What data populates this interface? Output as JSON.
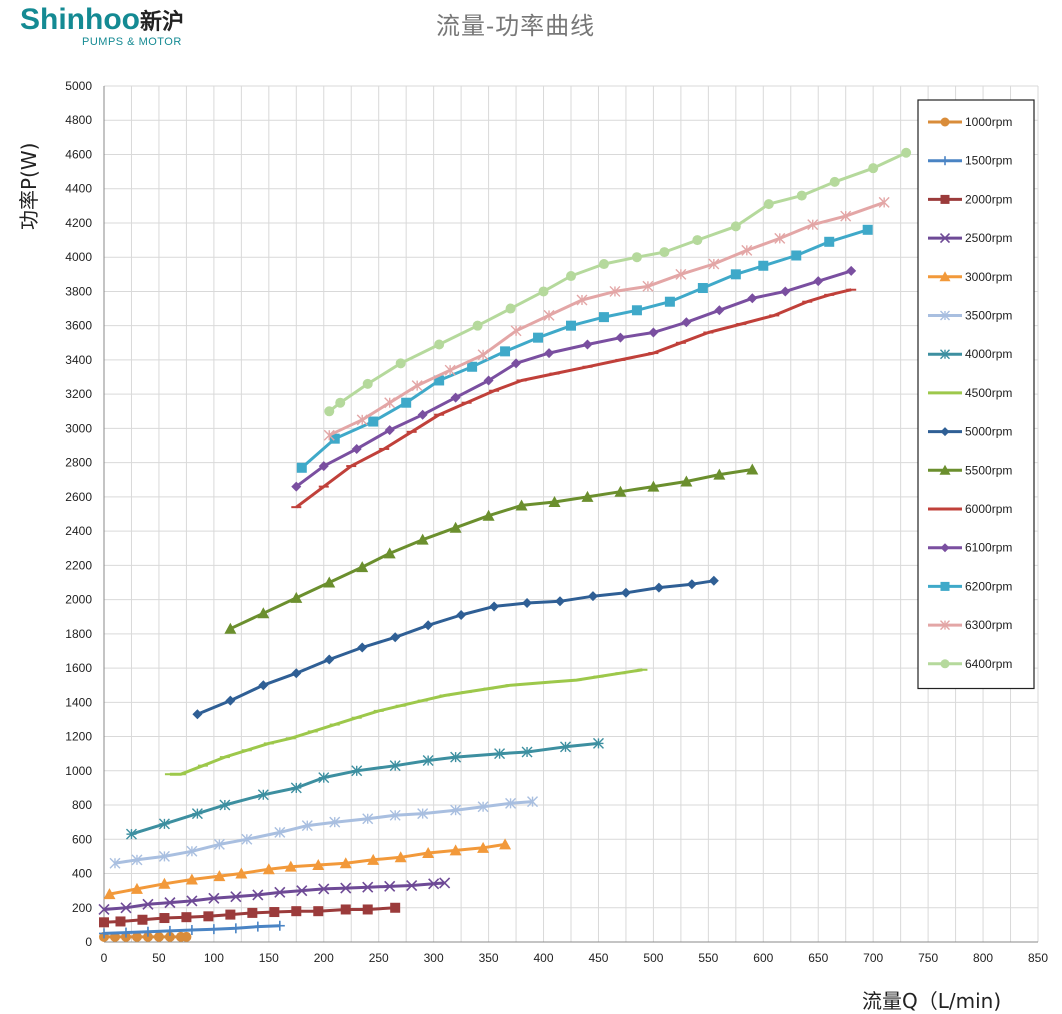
{
  "brand": {
    "name": "Shinhoo",
    "name_cn": "新沪",
    "tagline": "PUMPS & MOTOR"
  },
  "chart_data": {
    "type": "line",
    "title": "流量-功率曲线",
    "xlabel": "流量Q（L/min)",
    "ylabel": "功率P(W)",
    "xlim": [
      0,
      850
    ],
    "ylim": [
      0,
      5000
    ],
    "x_ticks": [
      0,
      50,
      100,
      150,
      200,
      250,
      300,
      350,
      400,
      450,
      500,
      550,
      600,
      650,
      700,
      750,
      800,
      850
    ],
    "y_ticks": [
      0,
      200,
      400,
      600,
      800,
      1000,
      1200,
      1400,
      1600,
      1800,
      2000,
      2200,
      2400,
      2600,
      2800,
      3000,
      3200,
      3400,
      3600,
      3800,
      4000,
      4200,
      4400,
      4600,
      4800,
      5000
    ],
    "grid": true,
    "legend_position": "top-right",
    "series": [
      {
        "name": "1000rpm",
        "color": "#d98c3a",
        "marker": "circle",
        "x": [
          0,
          10,
          20,
          30,
          40,
          50,
          60,
          70,
          75
        ],
        "y": [
          30,
          30,
          30,
          30,
          30,
          30,
          30,
          30,
          30
        ]
      },
      {
        "name": "1500rpm",
        "color": "#4a84c4",
        "marker": "plus",
        "x": [
          0,
          20,
          40,
          60,
          80,
          100,
          120,
          140,
          160
        ],
        "y": [
          50,
          55,
          60,
          65,
          70,
          75,
          80,
          90,
          95
        ]
      },
      {
        "name": "2000rpm",
        "color": "#9b3b3b",
        "marker": "square",
        "x": [
          0,
          15,
          35,
          55,
          75,
          95,
          115,
          135,
          155,
          175,
          195,
          220,
          240,
          265
        ],
        "y": [
          115,
          120,
          130,
          140,
          145,
          150,
          160,
          170,
          175,
          180,
          180,
          190,
          190,
          200
        ]
      },
      {
        "name": "2500rpm",
        "color": "#6e4a96",
        "marker": "x",
        "x": [
          0,
          20,
          40,
          60,
          80,
          100,
          120,
          140,
          160,
          180,
          200,
          220,
          240,
          260,
          280,
          300,
          310
        ],
        "y": [
          190,
          200,
          220,
          230,
          240,
          255,
          265,
          275,
          290,
          300,
          310,
          315,
          320,
          325,
          330,
          340,
          345
        ]
      },
      {
        "name": "3000rpm",
        "color": "#f2993a",
        "marker": "triangle",
        "x": [
          5,
          30,
          55,
          80,
          105,
          125,
          150,
          170,
          195,
          220,
          245,
          270,
          295,
          320,
          345,
          365
        ],
        "y": [
          280,
          310,
          340,
          365,
          385,
          400,
          425,
          440,
          450,
          460,
          480,
          495,
          520,
          535,
          550,
          570
        ]
      },
      {
        "name": "3500rpm",
        "color": "#a9bfe0",
        "marker": "star",
        "x": [
          10,
          30,
          55,
          80,
          105,
          130,
          160,
          185,
          210,
          240,
          265,
          290,
          320,
          345,
          370,
          390
        ],
        "y": [
          460,
          480,
          500,
          530,
          570,
          600,
          640,
          680,
          700,
          720,
          740,
          750,
          770,
          790,
          810,
          820
        ]
      },
      {
        "name": "4000rpm",
        "color": "#3d8fa0",
        "marker": "asterisk",
        "x": [
          25,
          55,
          85,
          110,
          145,
          175,
          200,
          230,
          265,
          295,
          320,
          360,
          385,
          420,
          450
        ],
        "y": [
          630,
          690,
          750,
          800,
          860,
          900,
          960,
          1000,
          1030,
          1060,
          1080,
          1100,
          1110,
          1140,
          1160
        ]
      },
      {
        "name": "4500rpm",
        "color": "#9dc84b",
        "marker": "dash",
        "x": [
          60,
          70,
          90,
          110,
          130,
          150,
          170,
          190,
          210,
          230,
          250,
          270,
          290,
          310,
          330,
          350,
          370,
          390,
          410,
          430,
          450,
          470,
          490
        ],
        "y": [
          980,
          980,
          1030,
          1080,
          1120,
          1160,
          1190,
          1230,
          1270,
          1310,
          1350,
          1380,
          1410,
          1440,
          1460,
          1480,
          1500,
          1510,
          1520,
          1530,
          1550,
          1570,
          1590
        ]
      },
      {
        "name": "5000rpm",
        "color": "#2f5f95",
        "marker": "diamond",
        "x": [
          85,
          115,
          145,
          175,
          205,
          235,
          265,
          295,
          325,
          355,
          385,
          415,
          445,
          475,
          505,
          535,
          555
        ],
        "y": [
          1330,
          1410,
          1500,
          1570,
          1650,
          1720,
          1780,
          1850,
          1910,
          1960,
          1980,
          1990,
          2020,
          2040,
          2070,
          2090,
          2110
        ]
      },
      {
        "name": "5500rpm",
        "color": "#6b8f2e",
        "marker": "triangle",
        "x": [
          115,
          145,
          175,
          205,
          235,
          260,
          290,
          320,
          350,
          380,
          410,
          440,
          470,
          500,
          530,
          560,
          590
        ],
        "y": [
          1830,
          1920,
          2010,
          2100,
          2190,
          2270,
          2350,
          2420,
          2490,
          2550,
          2570,
          2600,
          2630,
          2660,
          2690,
          2730,
          2760
        ]
      },
      {
        "name": "6000rpm",
        "color": "#c0403a",
        "marker": "dash",
        "x": [
          175,
          200,
          225,
          255,
          280,
          305,
          330,
          355,
          380,
          410,
          440,
          470,
          500,
          525,
          550,
          580,
          610,
          640,
          660,
          680
        ],
        "y": [
          2540,
          2660,
          2780,
          2880,
          2980,
          3080,
          3150,
          3220,
          3280,
          3320,
          3360,
          3400,
          3440,
          3500,
          3560,
          3610,
          3660,
          3740,
          3780,
          3810
        ]
      },
      {
        "name": "6100rpm",
        "color": "#7a4fa0",
        "marker": "diamond",
        "x": [
          175,
          200,
          230,
          260,
          290,
          320,
          350,
          375,
          405,
          440,
          470,
          500,
          530,
          560,
          590,
          620,
          650,
          680
        ],
        "y": [
          2660,
          2780,
          2880,
          2990,
          3080,
          3180,
          3280,
          3380,
          3440,
          3490,
          3530,
          3560,
          3620,
          3690,
          3760,
          3800,
          3860,
          3920
        ]
      },
      {
        "name": "6200rpm",
        "color": "#3fa9c9",
        "marker": "square",
        "x": [
          180,
          210,
          245,
          275,
          305,
          335,
          365,
          395,
          425,
          455,
          485,
          515,
          545,
          575,
          600,
          630,
          660,
          695
        ],
        "y": [
          2770,
          2940,
          3040,
          3150,
          3280,
          3360,
          3450,
          3530,
          3600,
          3650,
          3690,
          3740,
          3820,
          3900,
          3950,
          4010,
          4090,
          4160
        ]
      },
      {
        "name": "6300rpm",
        "color": "#e3a6a6",
        "marker": "star",
        "x": [
          205,
          235,
          260,
          285,
          315,
          345,
          375,
          405,
          435,
          465,
          495,
          525,
          555,
          585,
          615,
          645,
          675,
          710
        ],
        "y": [
          2960,
          3050,
          3150,
          3250,
          3340,
          3430,
          3570,
          3660,
          3750,
          3800,
          3830,
          3900,
          3960,
          4040,
          4110,
          4190,
          4240,
          4320
        ]
      },
      {
        "name": "6400rpm",
        "color": "#b5d99c",
        "marker": "circle",
        "x": [
          205,
          215,
          240,
          270,
          305,
          340,
          370,
          400,
          425,
          455,
          485,
          510,
          540,
          575,
          605,
          635,
          665,
          700,
          730
        ],
        "y": [
          3100,
          3150,
          3260,
          3380,
          3490,
          3600,
          3700,
          3800,
          3890,
          3960,
          4000,
          4030,
          4100,
          4180,
          4310,
          4360,
          4440,
          4520,
          4610
        ]
      }
    ]
  }
}
